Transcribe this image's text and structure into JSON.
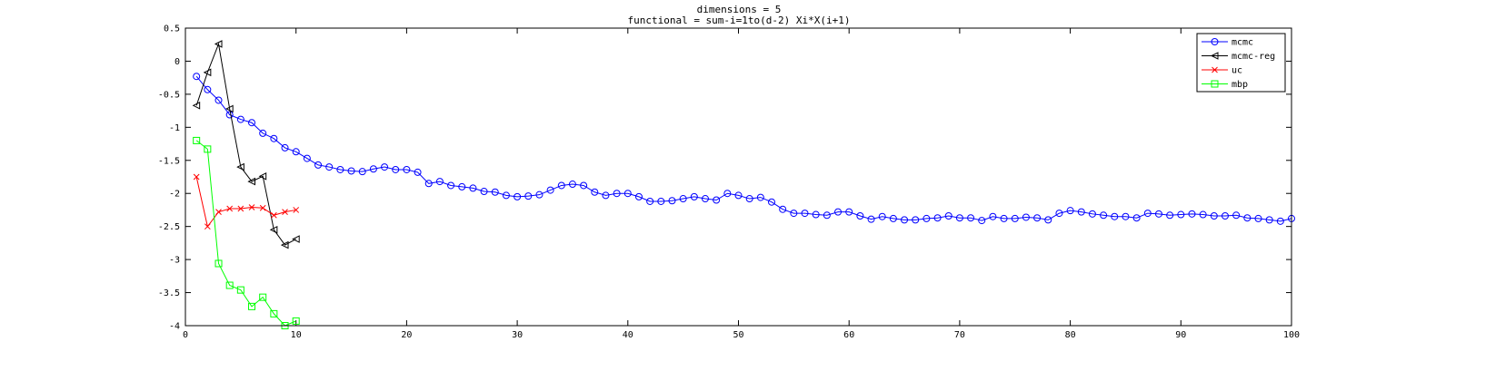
{
  "chart_data": {
    "type": "line",
    "title": "dimensions = 5",
    "subtitle": "functional = sum-i=1to(d-2) Xi*X(i+1)",
    "xlabel": "",
    "ylabel": "",
    "xlim": [
      0,
      100
    ],
    "ylim": [
      -4,
      0.5
    ],
    "xticks": [
      0,
      10,
      20,
      30,
      40,
      50,
      60,
      70,
      80,
      90,
      100
    ],
    "yticks": [
      0.5,
      0,
      -0.5,
      -1,
      -1.5,
      -2,
      -2.5,
      -3,
      -3.5,
      -4
    ],
    "grid": false,
    "legend_position": "top-right",
    "series": [
      {
        "name": "mcmc",
        "color": "#0000ff",
        "marker": "circle",
        "x": [
          1,
          2,
          3,
          4,
          5,
          6,
          7,
          8,
          9,
          10,
          11,
          12,
          13,
          14,
          15,
          16,
          17,
          18,
          19,
          20,
          21,
          22,
          23,
          24,
          25,
          26,
          27,
          28,
          29,
          30,
          31,
          32,
          33,
          34,
          35,
          36,
          37,
          38,
          39,
          40,
          41,
          42,
          43,
          44,
          45,
          46,
          47,
          48,
          49,
          50,
          51,
          52,
          53,
          54,
          55,
          56,
          57,
          58,
          59,
          60,
          61,
          62,
          63,
          64,
          65,
          66,
          67,
          68,
          69,
          70,
          71,
          72,
          73,
          74,
          75,
          76,
          77,
          78,
          79,
          80,
          81,
          82,
          83,
          84,
          85,
          86,
          87,
          88,
          89,
          90,
          91,
          92,
          93,
          94,
          95,
          96,
          97,
          98,
          99,
          100
        ],
        "values": [
          -0.23,
          -0.43,
          -0.59,
          -0.81,
          -0.88,
          -0.93,
          -1.09,
          -1.17,
          -1.31,
          -1.37,
          -1.47,
          -1.57,
          -1.6,
          -1.64,
          -1.66,
          -1.67,
          -1.63,
          -1.6,
          -1.64,
          -1.64,
          -1.68,
          -1.85,
          -1.82,
          -1.88,
          -1.9,
          -1.92,
          -1.97,
          -1.98,
          -2.03,
          -2.05,
          -2.04,
          -2.02,
          -1.95,
          -1.88,
          -1.86,
          -1.88,
          -1.98,
          -2.03,
          -2.0,
          -2.0,
          -2.05,
          -2.12,
          -2.12,
          -2.11,
          -2.08,
          -2.05,
          -2.08,
          -2.1,
          -2.0,
          -2.03,
          -2.08,
          -2.06,
          -2.13,
          -2.24,
          -2.3,
          -2.3,
          -2.32,
          -2.33,
          -2.28,
          -2.28,
          -2.34,
          -2.39,
          -2.35,
          -2.38,
          -2.4,
          -2.4,
          -2.38,
          -2.37,
          -2.34,
          -2.37,
          -2.37,
          -2.41,
          -2.35,
          -2.38,
          -2.38,
          -2.36,
          -2.37,
          -2.4,
          -2.3,
          -2.26,
          -2.28,
          -2.31,
          -2.33,
          -2.35,
          -2.35,
          -2.37,
          -2.3,
          -2.31,
          -2.33,
          -2.32,
          -2.31,
          -2.32,
          -2.34,
          -2.34,
          -2.33,
          -2.37,
          -2.38,
          -2.4,
          -2.42,
          -2.38
        ]
      },
      {
        "name": "mcmc-reg",
        "color": "#000000",
        "marker": "triangle-left",
        "x": [
          1,
          2,
          3,
          4,
          5,
          6,
          7,
          8,
          9,
          10
        ],
        "values": [
          -0.67,
          -0.17,
          0.26,
          -0.72,
          -1.6,
          -1.82,
          -1.74,
          -2.55,
          -2.78,
          -2.69
        ]
      },
      {
        "name": "uc",
        "color": "#ff0000",
        "marker": "x",
        "x": [
          1,
          2,
          3,
          4,
          5,
          6,
          7,
          8,
          9,
          10
        ],
        "values": [
          -1.75,
          -2.5,
          -2.28,
          -2.23,
          -2.23,
          -2.21,
          -2.22,
          -2.33,
          -2.28,
          -2.25
        ]
      },
      {
        "name": "mbp",
        "color": "#00ff00",
        "marker": "square",
        "x": [
          1,
          2,
          3,
          4,
          5,
          6,
          7,
          8,
          9,
          10
        ],
        "values": [
          -1.2,
          -1.33,
          -3.06,
          -3.39,
          -3.46,
          -3.71,
          -3.57,
          -3.82,
          -4.0,
          -3.93
        ]
      }
    ]
  }
}
